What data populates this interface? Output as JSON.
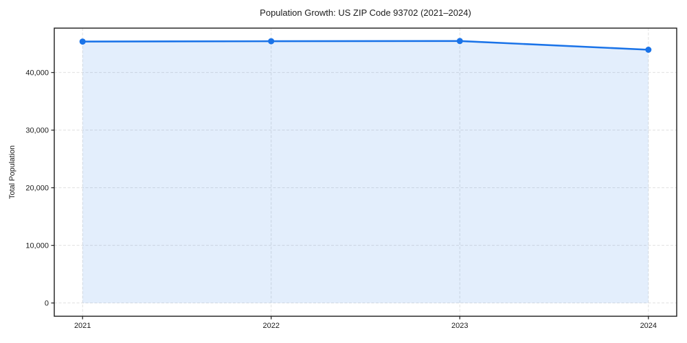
{
  "chart_data": {
    "type": "line",
    "title": "Population Growth: US ZIP Code 93702 (2021–2024)",
    "xlabel": "",
    "ylabel": "Total Population",
    "x": [
      2021,
      2022,
      2023,
      2024
    ],
    "xtick_labels": [
      "2021",
      "2022",
      "2023",
      "2024"
    ],
    "series": [
      {
        "name": "Total Population",
        "values": [
          45370,
          45430,
          45460,
          43950
        ]
      }
    ],
    "area_fill_to": 0,
    "yticks": [
      0,
      10000,
      20000,
      30000,
      40000
    ],
    "ytick_labels": [
      "0",
      "10,000",
      "20,000",
      "30,000",
      "40,000"
    ],
    "ylim": [
      -2300,
      47700
    ],
    "xlim": [
      2020.85,
      2024.15
    ],
    "grid": "dashed, both axes, below data",
    "legend": "none",
    "marker": "circle",
    "colors": {
      "line": "#1a73e8",
      "area": "rgba(26,115,232,0.12)",
      "grid": "#dcdcdc",
      "spine": "#1a1a1a",
      "text": "#1a1a1a",
      "background": "#ffffff"
    }
  }
}
